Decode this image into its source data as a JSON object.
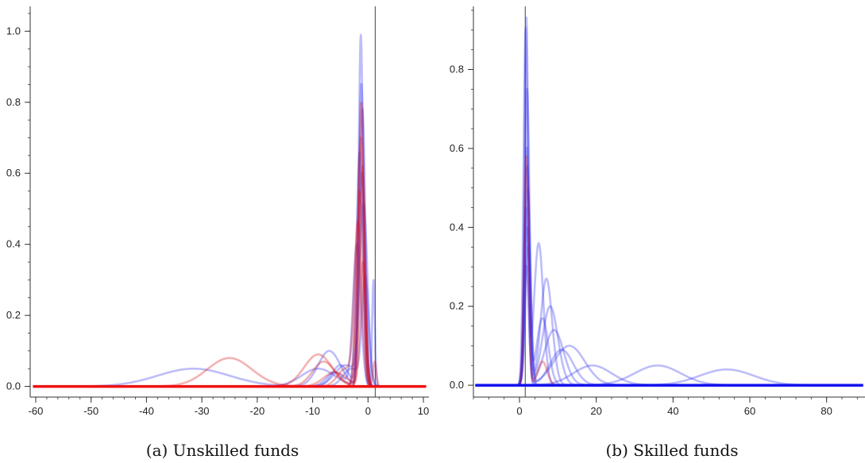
{
  "chart_data": [
    {
      "type": "line",
      "title": "",
      "caption": "(a) Unskilled funds",
      "xlabel": "",
      "ylabel": "",
      "xlim": [
        -61,
        11
      ],
      "ylim": [
        -0.03,
        1.07
      ],
      "x_ticks": [
        -60,
        -50,
        -40,
        -30,
        -20,
        -10,
        0,
        10
      ],
      "y_ticks": [
        0.0,
        0.2,
        0.4,
        0.6,
        0.8,
        1.0
      ],
      "x_tick_labels": [
        "-60",
        "-50",
        "-40",
        "-30",
        "-20",
        "-10",
        "0",
        "10"
      ],
      "y_tick_labels": [
        "0.0",
        "0.2",
        "0.4",
        "0.6",
        "0.8",
        "1.0"
      ],
      "vertical_line_x": 1.3,
      "series": [
        {
          "color": "#3333ee",
          "components": [
            {
              "m": -1.3,
              "s": 0.4,
              "a": 0.99
            },
            {
              "m": 1.0,
              "s": 0.25,
              "a": 0.3
            }
          ]
        },
        {
          "color": "#3333ee",
          "components": [
            {
              "m": -1.2,
              "s": 0.5,
              "a": 0.85
            },
            {
              "m": -5,
              "s": 1.5,
              "a": 0.06
            }
          ]
        },
        {
          "color": "#3333ee",
          "components": [
            {
              "m": -1.0,
              "s": 0.5,
              "a": 0.78
            },
            {
              "m": -7,
              "s": 2.0,
              "a": 0.1
            }
          ]
        },
        {
          "color": "#3333ee",
          "components": [
            {
              "m": -1.5,
              "s": 0.6,
              "a": 0.66
            },
            {
              "m": -31.5,
              "s": 6.5,
              "a": 0.05
            }
          ]
        },
        {
          "color": "#3333ee",
          "components": [
            {
              "m": -0.8,
              "s": 0.7,
              "a": 0.5
            },
            {
              "m": -4,
              "s": 2.0,
              "a": 0.06
            }
          ]
        },
        {
          "color": "#3333ee",
          "components": [
            {
              "m": -1.1,
              "s": 0.55,
              "a": 0.6
            },
            {
              "m": -9,
              "s": 3.0,
              "a": 0.05
            }
          ]
        },
        {
          "color": "#3333ee",
          "components": [
            {
              "m": -2.0,
              "s": 0.7,
              "a": 0.4
            },
            {
              "m": -6,
              "s": 1.5,
              "a": 0.04
            }
          ]
        },
        {
          "color": "#3333ee",
          "components": [
            {
              "m": -0.5,
              "s": 0.6,
              "a": 0.3
            },
            {
              "m": -3,
              "s": 1.5,
              "a": 0.05
            }
          ]
        },
        {
          "color": "#dd1111",
          "components": [
            {
              "m": -1.2,
              "s": 0.45,
              "a": 0.8
            },
            {
              "m": 1.2,
              "s": 0.3,
              "a": 0.07
            }
          ]
        },
        {
          "color": "#dd1111",
          "components": [
            {
              "m": -1.3,
              "s": 0.55,
              "a": 0.7
            },
            {
              "m": -9,
              "s": 2.5,
              "a": 0.09
            }
          ]
        },
        {
          "color": "#dd1111",
          "components": [
            {
              "m": -1.5,
              "s": 0.6,
              "a": 0.55
            },
            {
              "m": -25,
              "s": 4.0,
              "a": 0.08
            }
          ]
        },
        {
          "color": "#dd1111",
          "components": [
            {
              "m": -1.0,
              "s": 0.5,
              "a": 0.62
            },
            {
              "m": -8,
              "s": 2.0,
              "a": 0.07
            }
          ]
        },
        {
          "color": "#dd1111",
          "components": [
            {
              "m": -1.8,
              "s": 0.65,
              "a": 0.45
            },
            {
              "m": -4,
              "s": 1.5,
              "a": 0.05
            }
          ]
        },
        {
          "color": "#dd1111",
          "components": [
            {
              "m": -0.9,
              "s": 0.5,
              "a": 0.35
            },
            {
              "m": -6,
              "s": 2.0,
              "a": 0.04
            }
          ]
        }
      ]
    },
    {
      "type": "line",
      "title": "",
      "caption": "(b) Skilled funds",
      "xlabel": "",
      "ylabel": "",
      "xlim": [
        -12,
        90
      ],
      "ylim": [
        -0.03,
        0.96
      ],
      "x_ticks": [
        0,
        20,
        40,
        60,
        80
      ],
      "y_ticks": [
        0.0,
        0.2,
        0.4,
        0.6,
        0.8
      ],
      "x_tick_labels": [
        "0",
        "20",
        "40",
        "60",
        "80"
      ],
      "y_tick_labels": [
        "0.0",
        "0.2",
        "0.4",
        "0.6",
        "0.8"
      ],
      "vertical_line_x": 1.5,
      "series": [
        {
          "color": "#3333ee",
          "components": [
            {
              "m": 1.8,
              "s": 0.5,
              "a": 0.93
            },
            {
              "m": 13,
              "s": 4.0,
              "a": 0.1
            }
          ]
        },
        {
          "color": "#3333ee",
          "components": [
            {
              "m": 1.6,
              "s": 0.55,
              "a": 0.9
            },
            {
              "m": 5,
              "s": 1.2,
              "a": 0.36
            }
          ]
        },
        {
          "color": "#3333ee",
          "components": [
            {
              "m": 2.0,
              "s": 0.6,
              "a": 0.75
            },
            {
              "m": 7,
              "s": 1.5,
              "a": 0.27
            }
          ]
        },
        {
          "color": "#3333ee",
          "components": [
            {
              "m": 1.9,
              "s": 0.6,
              "a": 0.6
            },
            {
              "m": 8,
              "s": 2.0,
              "a": 0.2
            }
          ]
        },
        {
          "color": "#3333ee",
          "components": [
            {
              "m": 2.2,
              "s": 0.7,
              "a": 0.5
            },
            {
              "m": 36,
              "s": 6.0,
              "a": 0.05
            }
          ]
        },
        {
          "color": "#3333ee",
          "components": [
            {
              "m": 1.7,
              "s": 0.6,
              "a": 0.45
            },
            {
              "m": 54,
              "s": 7.0,
              "a": 0.04
            }
          ]
        },
        {
          "color": "#3333ee",
          "components": [
            {
              "m": 2.1,
              "s": 0.65,
              "a": 0.4
            },
            {
              "m": 19,
              "s": 5.0,
              "a": 0.05
            }
          ]
        },
        {
          "color": "#3333ee",
          "components": [
            {
              "m": 2.3,
              "s": 0.7,
              "a": 0.35
            },
            {
              "m": 11,
              "s": 3.0,
              "a": 0.09
            }
          ]
        },
        {
          "color": "#3333ee",
          "components": [
            {
              "m": 1.8,
              "s": 0.6,
              "a": 0.3
            },
            {
              "m": 9,
              "s": 2.5,
              "a": 0.14
            }
          ]
        },
        {
          "color": "#3333ee",
          "components": [
            {
              "m": 2.0,
              "s": 0.6,
              "a": 0.55
            },
            {
              "m": 6,
              "s": 1.5,
              "a": 0.17
            }
          ]
        },
        {
          "color": "#dd1111",
          "components": [
            {
              "m": 1.8,
              "s": 0.55,
              "a": 0.58
            },
            {
              "m": 6,
              "s": 1.2,
              "a": 0.06
            }
          ]
        }
      ]
    }
  ]
}
